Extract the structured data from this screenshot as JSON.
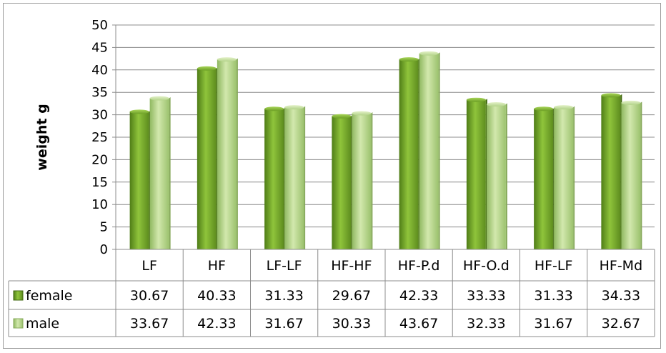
{
  "chart_data": {
    "type": "bar",
    "title": "",
    "xlabel": "",
    "ylabel": "weight  g",
    "ylim": [
      0,
      50
    ],
    "ytick_step": 5,
    "yticks": [
      "0",
      "5",
      "10",
      "15",
      "20",
      "25",
      "30",
      "35",
      "40",
      "45",
      "50"
    ],
    "grid": "horizontal",
    "legend": "data-table-left",
    "categories": [
      "LF",
      "HF",
      "LF-LF",
      "HF-HF",
      "HF-P.d",
      "HF-O.d",
      "HF-LF",
      "HF-Md"
    ],
    "series": [
      {
        "name": "female",
        "values": [
          30.67,
          40.33,
          31.33,
          29.67,
          42.33,
          33.33,
          31.33,
          34.33
        ],
        "labels": [
          "30.67",
          "40.33",
          "31.33",
          "29.67",
          "42.33",
          "33.33",
          "31.33",
          "34.33"
        ],
        "color": "#7aab2e"
      },
      {
        "name": "male",
        "values": [
          33.67,
          42.33,
          31.67,
          30.33,
          43.67,
          32.33,
          31.67,
          32.67
        ],
        "labels": [
          "33.67",
          "42.33",
          "31.67",
          "30.33",
          "43.67",
          "32.33",
          "31.67",
          "32.67"
        ],
        "color": "#b8d68c"
      }
    ]
  }
}
